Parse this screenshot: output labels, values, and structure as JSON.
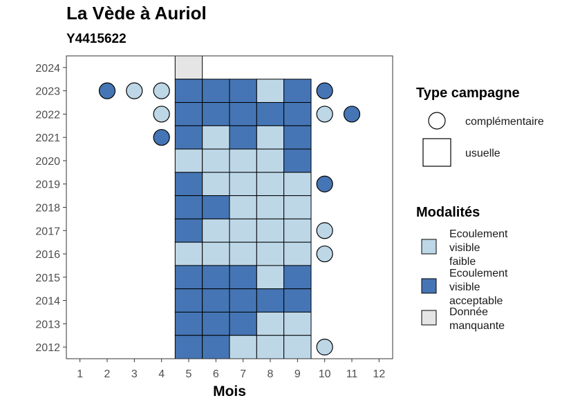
{
  "title": "La Vède à Auriol",
  "subtitle": "Y4415622",
  "colors": {
    "faible": "#BDD7E7",
    "acceptable": "#4575B4",
    "manquante": "#E5E5E5"
  },
  "legend": {
    "type_title": "Type campagne",
    "type_items": [
      {
        "label": "complémentaire",
        "shape": "circle"
      },
      {
        "label": "usuelle",
        "shape": "square"
      }
    ],
    "modal_title": "Modalités",
    "modal_items": [
      {
        "key": "faible",
        "lines": [
          "Ecoulement",
          "visible",
          "faible"
        ]
      },
      {
        "key": "acceptable",
        "lines": [
          "Ecoulement",
          "visible",
          "acceptable"
        ]
      },
      {
        "key": "manquante",
        "lines": [
          "Donnée",
          "manquante"
        ]
      }
    ]
  },
  "chart_data": {
    "type": "heatmap",
    "title": "La Vède à Auriol",
    "subtitle": "Y4415622",
    "xlabel": "Mois",
    "ylabel": "",
    "x_ticks": [
      1,
      2,
      3,
      4,
      5,
      6,
      7,
      8,
      9,
      10,
      11,
      12
    ],
    "y_ticks": [
      2012,
      2013,
      2014,
      2015,
      2016,
      2017,
      2018,
      2019,
      2020,
      2021,
      2022,
      2023,
      2024
    ],
    "xlim": [
      0.5,
      12.5
    ],
    "ylim": [
      2011.5,
      2024.5
    ],
    "usuelle": [
      {
        "year": 2024,
        "months": [
          [
            "manquante",
            5
          ]
        ]
      },
      {
        "year": 2023,
        "values": [
          "acceptable",
          "acceptable",
          "acceptable",
          "faible",
          "acceptable"
        ]
      },
      {
        "year": 2022,
        "values": [
          "acceptable",
          "acceptable",
          "acceptable",
          "acceptable",
          "acceptable"
        ]
      },
      {
        "year": 2021,
        "values": [
          "acceptable",
          "faible",
          "acceptable",
          "faible",
          "acceptable"
        ]
      },
      {
        "year": 2020,
        "values": [
          "faible",
          "faible",
          "faible",
          "faible",
          "acceptable"
        ]
      },
      {
        "year": 2019,
        "values": [
          "acceptable",
          "faible",
          "faible",
          "faible",
          "faible"
        ]
      },
      {
        "year": 2018,
        "values": [
          "acceptable",
          "acceptable",
          "faible",
          "faible",
          "faible"
        ]
      },
      {
        "year": 2017,
        "values": [
          "acceptable",
          "faible",
          "faible",
          "faible",
          "faible"
        ]
      },
      {
        "year": 2016,
        "values": [
          "faible",
          "faible",
          "faible",
          "faible",
          "faible"
        ]
      },
      {
        "year": 2015,
        "values": [
          "acceptable",
          "acceptable",
          "acceptable",
          "faible",
          "acceptable"
        ]
      },
      {
        "year": 2014,
        "values": [
          "acceptable",
          "acceptable",
          "acceptable",
          "acceptable",
          "acceptable"
        ]
      },
      {
        "year": 2013,
        "values": [
          "acceptable",
          "acceptable",
          "acceptable",
          "faible",
          "faible"
        ]
      },
      {
        "year": 2012,
        "values": [
          "acceptable",
          "acceptable",
          "faible",
          "faible",
          "faible"
        ]
      }
    ],
    "usuelle_months": [
      5,
      6,
      7,
      8,
      9
    ],
    "complementaire": [
      {
        "month": 2,
        "year": 2023,
        "value": "acceptable"
      },
      {
        "month": 3,
        "year": 2023,
        "value": "faible"
      },
      {
        "month": 4,
        "year": 2023,
        "value": "faible"
      },
      {
        "month": 10,
        "year": 2023,
        "value": "acceptable"
      },
      {
        "month": 4,
        "year": 2022,
        "value": "faible"
      },
      {
        "month": 10,
        "year": 2022,
        "value": "faible"
      },
      {
        "month": 11,
        "year": 2022,
        "value": "acceptable"
      },
      {
        "month": 4,
        "year": 2021,
        "value": "acceptable"
      },
      {
        "month": 10,
        "year": 2019,
        "value": "acceptable"
      },
      {
        "month": 10,
        "year": 2017,
        "value": "faible"
      },
      {
        "month": 10,
        "year": 2016,
        "value": "faible"
      },
      {
        "month": 10,
        "year": 2012,
        "value": "faible"
      }
    ]
  }
}
